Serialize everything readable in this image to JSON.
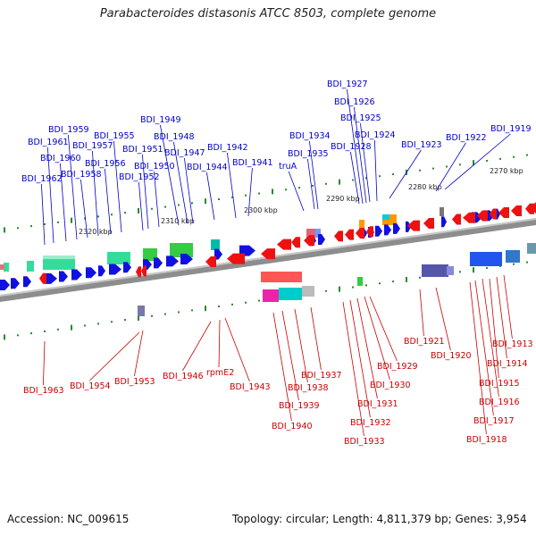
{
  "title": "Parabacteroides distasonis ATCC 8503, complete genome",
  "footer": {
    "accession": "Accession: NC_009615",
    "summary": "Topology: circular; Length: 4,811,379 bp; Genes: 3,954"
  },
  "scale_labels": [
    "2320 kbp",
    "2310 kbp",
    "2300 kbp",
    "2290 kbp",
    "2280 kbp",
    "2270 kbp"
  ],
  "top_genes": [
    "BDI_1962",
    "BDI_1961",
    "BDI_1960",
    "BDI_1959",
    "BDI_1958",
    "BDI_1957",
    "BDI_1956",
    "BDI_1955",
    "BDI_1952",
    "BDI_1951",
    "BDI_1950",
    "BDI_1949",
    "BDI_1948",
    "BDI_1947",
    "BDI_1944",
    "BDI_1942",
    "BDI_1941",
    "truA",
    "BDI_1935",
    "BDI_1934",
    "BDI_1928",
    "BDI_1927",
    "BDI_1926",
    "BDI_1925",
    "BDI_1924",
    "BDI_1923",
    "BDI_1922",
    "BDI_1919"
  ],
  "bottom_genes": [
    "BDI_1963",
    "BDI_1954",
    "BDI_1953",
    "BDI_1946",
    "rpmE2",
    "BDI_1943",
    "BDI_1940",
    "BDI_1939",
    "BDI_1938",
    "BDI_1937",
    "BDI_1933",
    "BDI_1932",
    "BDI_1931",
    "BDI_1930",
    "BDI_1929",
    "BDI_1921",
    "BDI_1920",
    "BDI_1918",
    "BDI_1917",
    "BDI_1916",
    "BDI_1915",
    "BDI_1914",
    "BDI_1913"
  ],
  "colors": {
    "forward": "#1010e0",
    "reverse": "#ee1111",
    "axis": "#999999",
    "tick": "#2a8a2a"
  }
}
